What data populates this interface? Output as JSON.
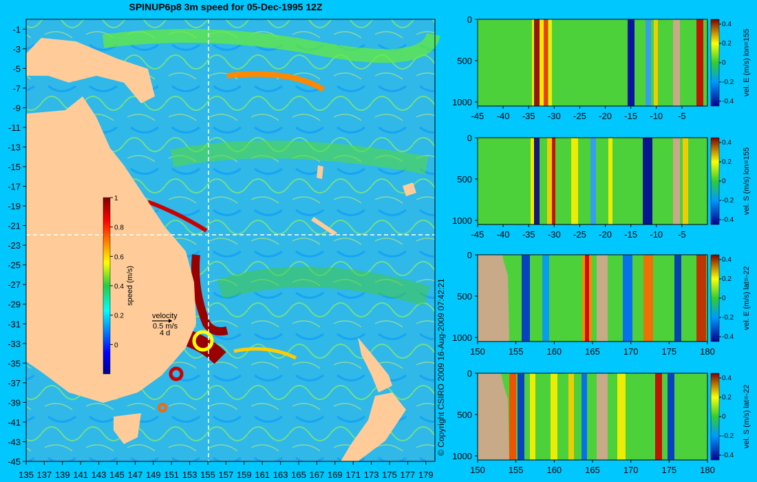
{
  "title": "SPINUP6p8 3m speed for 05-Dec-1995 12Z",
  "copyright": "© Copyright CSIRO 2009   16-Aug-2009 07:42:21",
  "colors": {
    "background": "#00c8ff",
    "land": "#ffcc99",
    "section_land": "#c8aa88",
    "crosshair": "#ffffff"
  },
  "chart_data": [
    {
      "type": "heatmap",
      "name": "speed map",
      "x_ticks": [
        "135",
        "137",
        "139",
        "141",
        "143",
        "145",
        "147",
        "149",
        "151",
        "153",
        "155",
        "157",
        "159",
        "161",
        "163",
        "165",
        "167",
        "169",
        "171",
        "173",
        "175",
        "177",
        "179"
      ],
      "y_ticks": [
        "-1",
        "-3",
        "-5",
        "-7",
        "-9",
        "-11",
        "-13",
        "-15",
        "-17",
        "-19",
        "-21",
        "-23",
        "-25",
        "-27",
        "-29",
        "-31",
        "-33",
        "-35",
        "-37",
        "-39",
        "-41",
        "-43",
        "-45"
      ],
      "xlim": [
        135,
        180
      ],
      "ylim": [
        -45,
        0
      ],
      "crosshair": {
        "lon": 155,
        "lat": -22
      },
      "colorbar": {
        "label": "speed (m/s)",
        "ticks": [
          "0",
          "0.2",
          "0.4",
          "0.6",
          "0.8",
          "1"
        ],
        "range": [
          -0.2,
          1
        ]
      },
      "velocity_key": {
        "title": "velocity",
        "speed": "0.5 m/s",
        "duration": "4 d"
      }
    },
    {
      "type": "heatmap",
      "name": "section 1",
      "x_ticks": [
        "-45",
        "-40",
        "-35",
        "-30",
        "-25",
        "-20",
        "-15",
        "-10",
        "-5"
      ],
      "xlim": [
        -45,
        0
      ],
      "y_ticks": [
        "0",
        "500",
        "1000"
      ],
      "ylim": [
        0,
        1050
      ],
      "colorbar": {
        "label": "vel. E (m/s) lon=155",
        "ticks": [
          "0.4",
          "0.2",
          "0",
          "-0.2",
          "-0.4"
        ],
        "range": [
          -0.45,
          0.45
        ]
      }
    },
    {
      "type": "heatmap",
      "name": "section 2",
      "x_ticks": [
        "-45",
        "-40",
        "-35",
        "-30",
        "-25",
        "-20",
        "-15",
        "-10",
        "-5"
      ],
      "xlim": [
        -45,
        0
      ],
      "y_ticks": [
        "0",
        "500",
        "1000"
      ],
      "ylim": [
        0,
        1050
      ],
      "colorbar": {
        "label": "vel. S (m/s) lon=155",
        "ticks": [
          "0.4",
          "0.2",
          "0",
          "-0.2",
          "-0.4"
        ],
        "range": [
          -0.45,
          0.45
        ]
      }
    },
    {
      "type": "heatmap",
      "name": "section 3",
      "x_ticks": [
        "150",
        "155",
        "160",
        "165",
        "170",
        "175",
        "180"
      ],
      "xlim": [
        150,
        180
      ],
      "y_ticks": [
        "0",
        "500",
        "1000"
      ],
      "ylim": [
        0,
        1050
      ],
      "colorbar": {
        "label": "vel. E (m/s) lat=-22",
        "ticks": [
          "0.4",
          "0.2",
          "0",
          "-0.2",
          "-0.4"
        ],
        "range": [
          -0.45,
          0.45
        ]
      }
    },
    {
      "type": "heatmap",
      "name": "section 4",
      "x_ticks": [
        "150",
        "155",
        "160",
        "165",
        "170",
        "175",
        "180"
      ],
      "xlim": [
        150,
        180
      ],
      "y_ticks": [
        "0",
        "500",
        "1000"
      ],
      "ylim": [
        0,
        1050
      ],
      "colorbar": {
        "label": "vel. S (m/s) lat=-22",
        "ticks": [
          "0.4",
          "0.2",
          "0",
          "-0.2",
          "-0.4"
        ],
        "range": [
          -0.45,
          0.45
        ]
      }
    }
  ]
}
